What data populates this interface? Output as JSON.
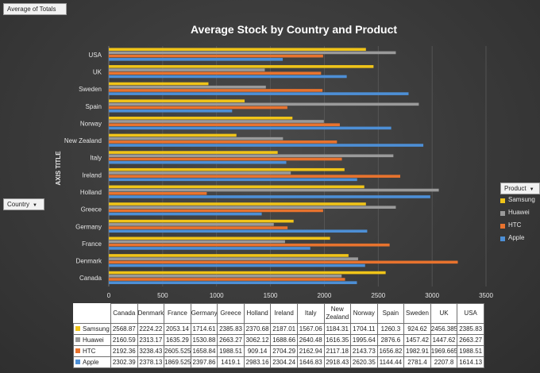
{
  "pivot": {
    "values_button": "Average of Totals",
    "row_field": "Country",
    "legend_field": "Product"
  },
  "chart_data": {
    "type": "bar",
    "orientation": "horizontal",
    "title": "Average Stock by Country and Product",
    "ylabel": "AXIS TITLE",
    "xlim": [
      0,
      3500
    ],
    "xticks": [
      0,
      500,
      1000,
      1500,
      2000,
      2500,
      3000,
      3500
    ],
    "grid": true,
    "legend_position": "right",
    "categories": [
      "Canada",
      "Denmark",
      "France",
      "Germany",
      "Greece",
      "Holland",
      "Ireland",
      "Italy",
      "New Zealand",
      "Norway",
      "Spain",
      "Sweden",
      "UK",
      "USA"
    ],
    "series": [
      {
        "name": "Samsung",
        "color": "#f0c419",
        "values": [
          2568.87,
          2224.22,
          2053.14,
          1714.61,
          2385.83,
          2370.68,
          2187.01,
          1567.06,
          1184.31,
          1704.11,
          1260.3,
          924.62,
          2456.385,
          2385.83
        ]
      },
      {
        "name": "Huawei",
        "color": "#9a9a9a",
        "values": [
          2160.59,
          2313.17,
          1635.29,
          1530.88,
          2663.27,
          3062.12,
          1688.66,
          2640.48,
          1616.35,
          1995.64,
          2876.6,
          1457.42,
          1447.62,
          2663.27
        ]
      },
      {
        "name": "HTC",
        "color": "#e8732e",
        "values": [
          2192.36,
          3238.43,
          2605.525,
          1658.84,
          1988.51,
          909.14,
          2704.29,
          2162.94,
          2117.18,
          2143.73,
          1656.82,
          1982.91,
          1969.665,
          1988.51
        ]
      },
      {
        "name": "Apple",
        "color": "#4d8fd6",
        "values": [
          2302.39,
          2378.13,
          1869.525,
          2397.86,
          1419.1,
          2983.16,
          2304.24,
          1646.83,
          2918.43,
          2620.35,
          1144.44,
          2781.4,
          2207.8,
          1614.13
        ]
      }
    ],
    "table": {
      "headers": [
        "Canada",
        "Denmark",
        "France",
        "Germany",
        "Greece",
        "Holland",
        "Ireland",
        "Italy",
        "New Zealand",
        "Norway",
        "Spain",
        "Sweden",
        "UK",
        "USA"
      ],
      "rows": [
        {
          "name": "Samsung",
          "color": "#f0c419",
          "cells": [
            "2568.87",
            "2224.22",
            "2053.14",
            "1714.61",
            "2385.83",
            "2370.68",
            "2187.01",
            "1567.06",
            "1184.31",
            "1704.11",
            "1260.3",
            "924.62",
            "2456.385",
            "2385.83"
          ]
        },
        {
          "name": "Huawei",
          "color": "#9a9a9a",
          "cells": [
            "2160.59",
            "2313.17",
            "1635.29",
            "1530.88",
            "2663.27",
            "3062.12",
            "1688.66",
            "2640.48",
            "1616.35",
            "1995.64",
            "2876.6",
            "1457.42",
            "1447.62",
            "2663.27"
          ]
        },
        {
          "name": "HTC",
          "color": "#e8732e",
          "cells": [
            "2192.36",
            "3238.43",
            "2605.525",
            "1658.84",
            "1988.51",
            "909.14",
            "2704.29",
            "2162.94",
            "2117.18",
            "2143.73",
            "1656.82",
            "1982.91",
            "1969.665",
            "1988.51"
          ]
        },
        {
          "name": "Apple",
          "color": "#4d8fd6",
          "cells": [
            "2302.39",
            "2378.13",
            "1869.525",
            "2397.86",
            "1419.1",
            "2983.16",
            "2304.24",
            "1646.83",
            "2918.43",
            "2620.35",
            "1144.44",
            "2781.4",
            "2207.8",
            "1614.13"
          ]
        }
      ]
    }
  }
}
